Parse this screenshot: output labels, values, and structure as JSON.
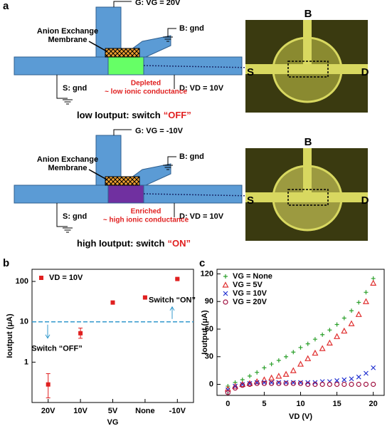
{
  "panel_labels": [
    "a",
    "b",
    "c"
  ],
  "schematics": [
    {
      "gate": "G: VG = 20V",
      "base": "B: gnd",
      "membrane": [
        "Anion Exchange",
        "Membrane"
      ],
      "source": "S: gnd",
      "state": "Depleted",
      "conductance": "~ low ionic conductance",
      "drain": "D: VD = 10V",
      "caption_prefix": "low Ioutput: switch",
      "caption_highlight": "“OFF”",
      "photo_labels": [
        "B",
        "S",
        "D"
      ]
    },
    {
      "gate": "G: VG = -10V",
      "base": "B: gnd",
      "membrane": [
        "Anion Exchange",
        "Membrane"
      ],
      "source": "S: gnd",
      "state": "Enriched",
      "conductance": "~ high ionic conductance",
      "drain": "D: VD = 10V",
      "caption_prefix": "high Ioutput: switch",
      "caption_highlight": "“ON”",
      "photo_labels": [
        "B",
        "S",
        "D"
      ]
    }
  ],
  "chart_data": [
    {
      "type": "scatter",
      "y_scale": "log",
      "categories": [
        "20V",
        "10V",
        "5V",
        "None",
        "-10V"
      ],
      "series": [
        {
          "name": "VD = 10V",
          "color": "#e02020",
          "values": [
            0.28,
            5.2,
            30,
            40,
            115
          ],
          "errors_low": [
            0.15,
            1.3,
            1,
            1.5,
            5
          ],
          "errors_high": [
            0.24,
            1.8,
            1,
            1.5,
            5
          ]
        }
      ],
      "ylim": [
        0.1,
        200
      ],
      "yticks": [
        1,
        10,
        100
      ],
      "threshold": 10,
      "threshold_color": "#3399cc",
      "annotations": [
        "Switch “ON”",
        "Switch “OFF”"
      ],
      "xlabel": "VG",
      "ylabel": "Ioutput (μA)",
      "legend": "upper left"
    },
    {
      "type": "scatter",
      "x": [
        0,
        1,
        2,
        3,
        4,
        5,
        6,
        7,
        8,
        9,
        10,
        11,
        12,
        13,
        14,
        15,
        16,
        17,
        18,
        19,
        20
      ],
      "series": [
        {
          "name": "VG = None",
          "color": "#2ca02c",
          "marker": "plus",
          "values": [
            -2,
            2,
            5,
            9,
            13,
            18,
            22,
            26,
            30,
            35,
            40,
            44,
            49,
            54,
            59,
            65,
            72,
            80,
            89,
            100,
            115
          ]
        },
        {
          "name": "VG = 5V",
          "color": "#e03030",
          "marker": "triangle",
          "values": [
            -5,
            -2,
            0,
            1,
            3,
            5,
            7,
            9,
            11,
            15,
            22,
            28,
            34,
            39,
            45,
            52,
            58,
            66,
            76,
            90,
            110
          ]
        },
        {
          "name": "VG = 10V",
          "color": "#2030d0",
          "marker": "x",
          "values": [
            -6,
            -2,
            0,
            1,
            2,
            2,
            2,
            2,
            2,
            2,
            2,
            2,
            2,
            3,
            3,
            4,
            5,
            6,
            8,
            12,
            18
          ]
        },
        {
          "name": "VG = 20V",
          "color": "#a01040",
          "marker": "circle",
          "values": [
            -9,
            -4,
            -1,
            0,
            1,
            1,
            1,
            1,
            1,
            1,
            1,
            0,
            0,
            0,
            0,
            0,
            0,
            0,
            0,
            0,
            0
          ]
        }
      ],
      "xlim": [
        -1.5,
        21.5
      ],
      "ylim": [
        -12,
        125
      ],
      "xticks": [
        0,
        5,
        10,
        15,
        20
      ],
      "yticks": [
        0,
        30,
        60,
        90,
        120
      ],
      "xlabel": "VD (V)",
      "ylabel": "Ioutput (μA)",
      "legend": "upper left"
    }
  ]
}
